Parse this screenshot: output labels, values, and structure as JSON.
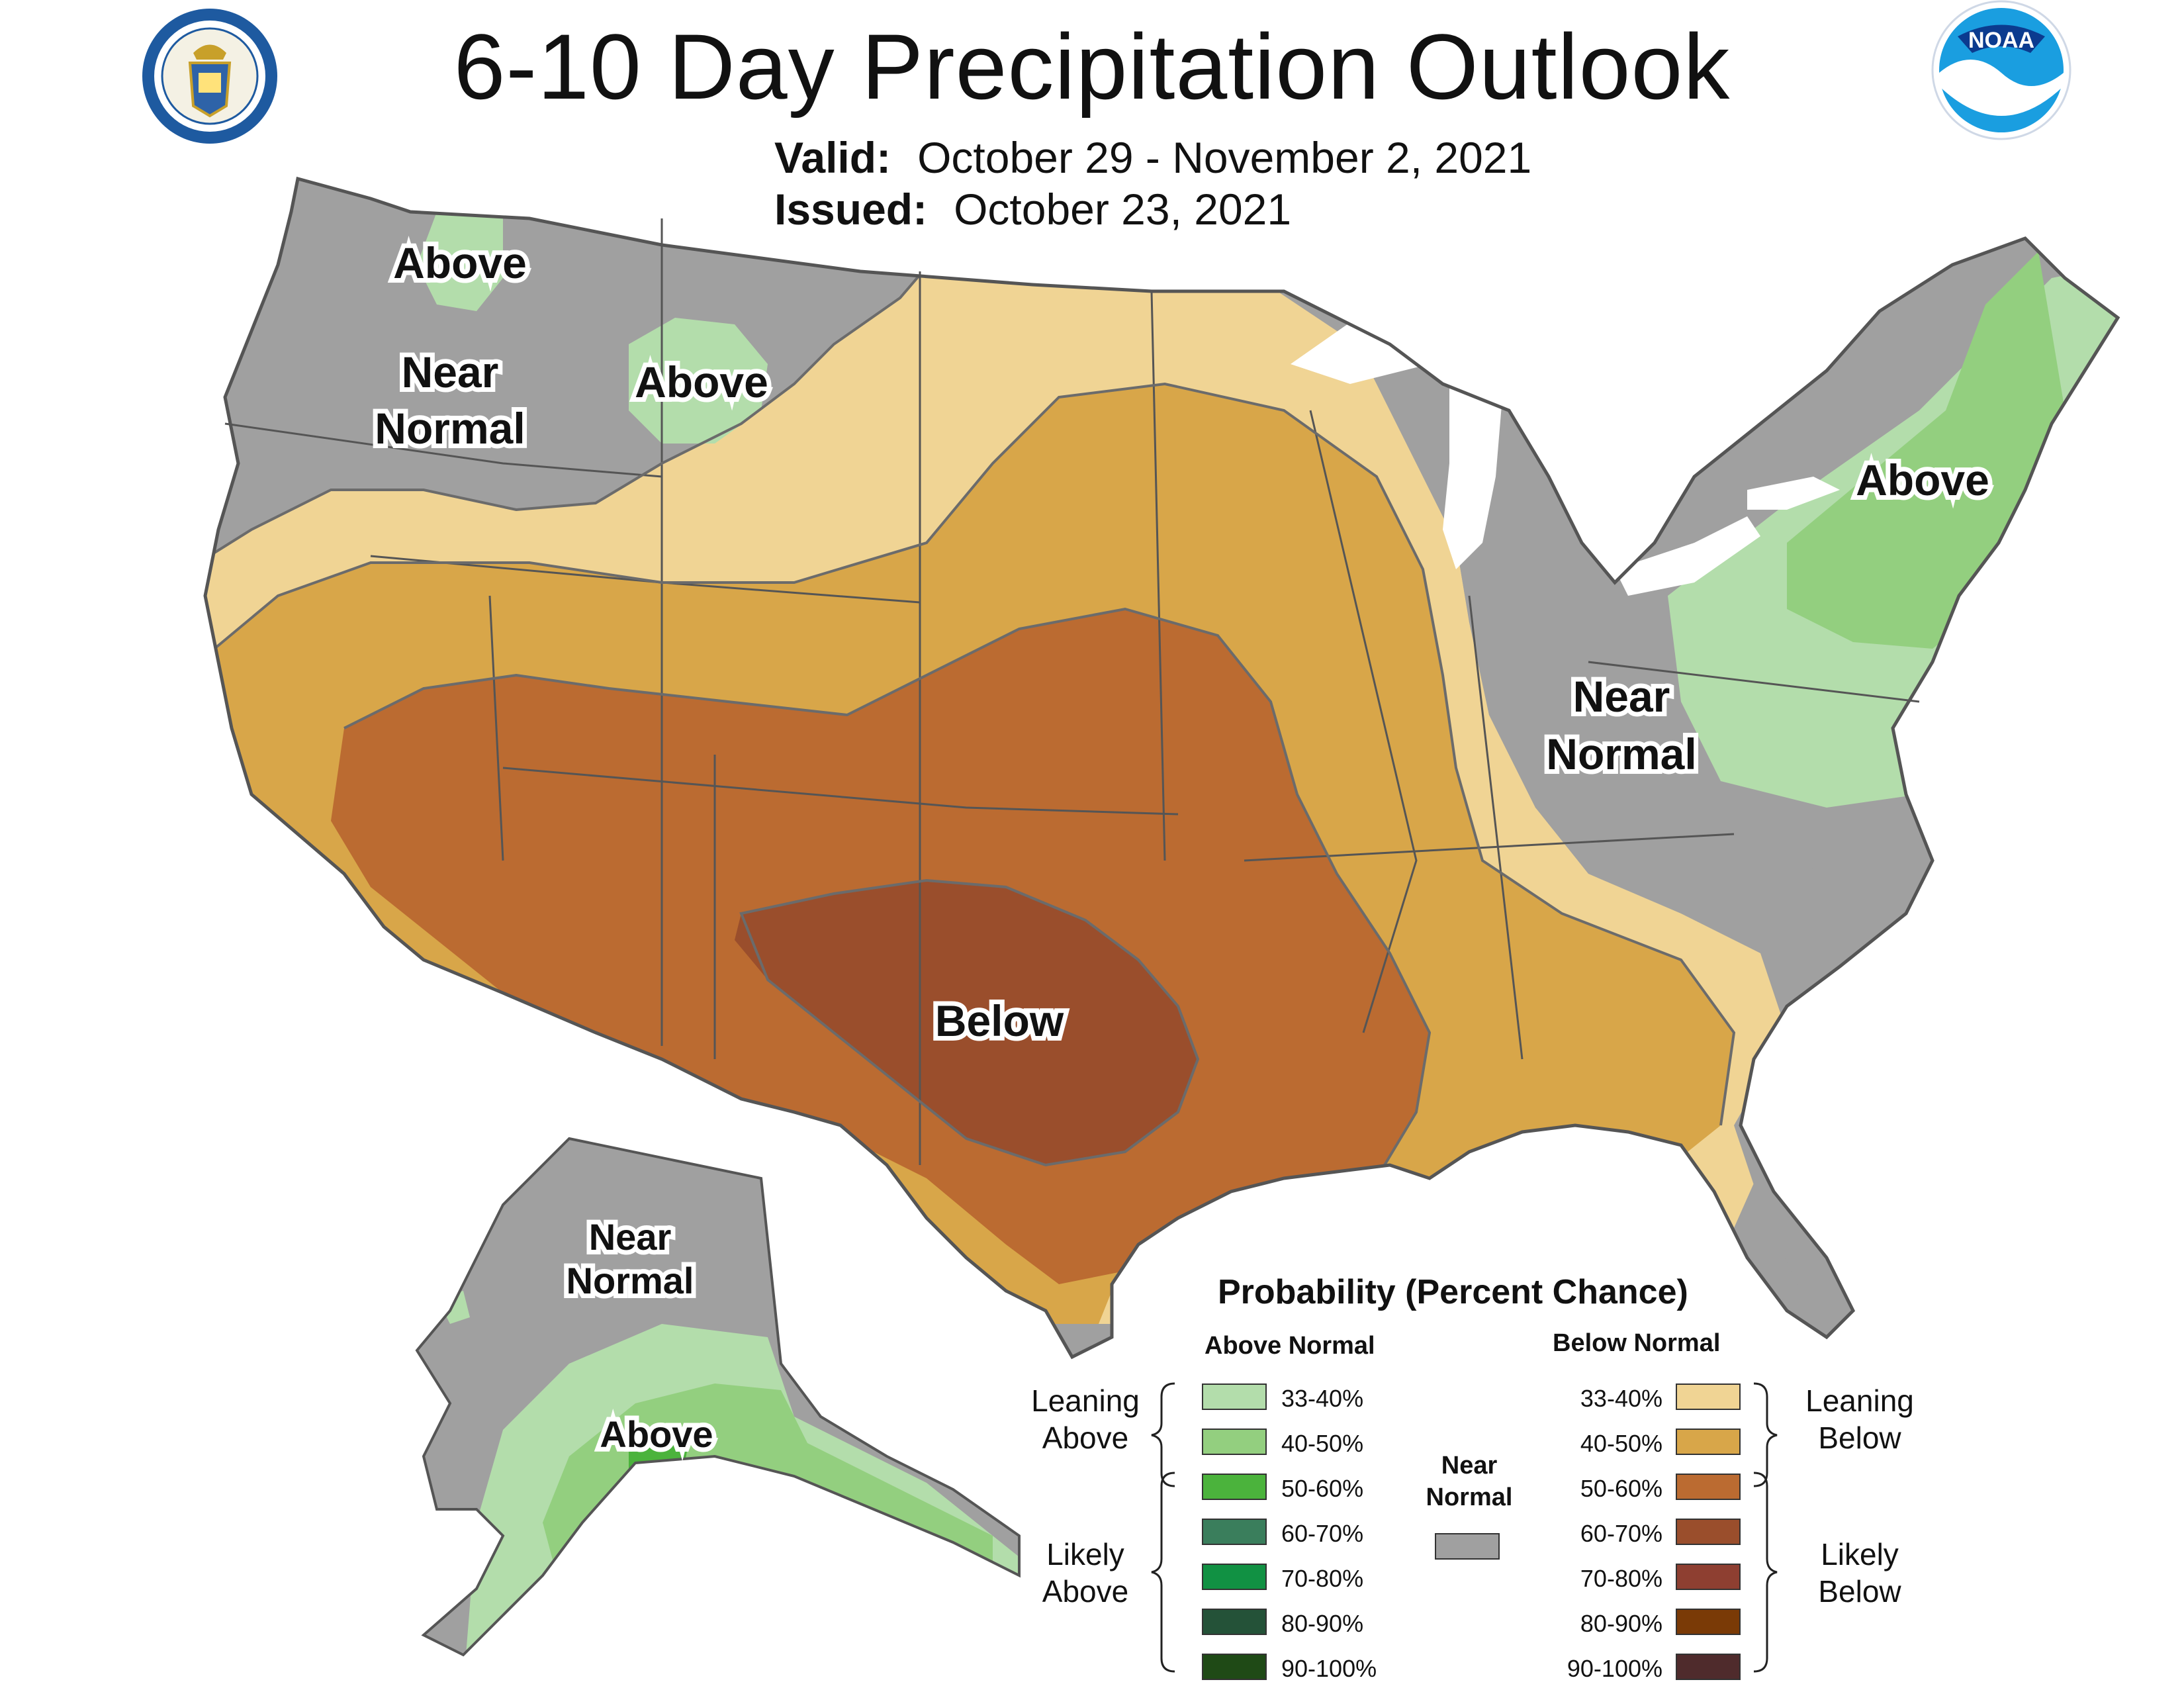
{
  "header": {
    "title": "6-10 Day Precipitation Outlook",
    "valid_label": "Valid:",
    "valid_value": "October 29 - November 2, 2021",
    "issued_label": "Issued:",
    "issued_value": "October 23, 2021"
  },
  "logos": {
    "left": "department-of-commerce-seal",
    "right": "noaa-logo"
  },
  "map_labels": {
    "above_wa": "Above",
    "near_normal_nw_1": "Near",
    "near_normal_nw_2": "Normal",
    "above_mt": "Above",
    "above_ne": "Above",
    "near_normal_oh_1": "Near",
    "near_normal_oh_2": "Normal",
    "below_tx": "Below",
    "near_normal_ak_1": "Near",
    "near_normal_ak_2": "Normal",
    "above_ak": "Above"
  },
  "colors": {
    "above_33_40": "#b3ddab",
    "above_40_50": "#93cf7f",
    "above_50_60": "#4bb33c",
    "above_60_70": "#3a7e5c",
    "above_70_80": "#119143",
    "above_80_90": "#245238",
    "above_90_100": "#1f4a16",
    "below_33_40": "#f0d494",
    "below_40_50": "#d8a649",
    "below_50_60": "#bb6b31",
    "below_60_70": "#9a4e2c",
    "below_70_80": "#8e3f31",
    "below_80_90": "#7a3a06",
    "below_90_100": "#4f2b2c",
    "near_normal": "#a0a0a0",
    "great_lakes": "#ffffff"
  },
  "legend": {
    "title": "Probability (Percent Chance)",
    "above_header": "Above Normal",
    "below_header": "Below Normal",
    "near_normal_1": "Near",
    "near_normal_2": "Normal",
    "leaning_above_1": "Leaning",
    "leaning_above_2": "Above",
    "likely_above_1": "Likely",
    "likely_above_2": "Above",
    "leaning_below_1": "Leaning",
    "leaning_below_2": "Below",
    "likely_below_1": "Likely",
    "likely_below_2": "Below",
    "ranges": [
      "33-40%",
      "40-50%",
      "50-60%",
      "60-70%",
      "70-80%",
      "80-90%",
      "90-100%"
    ]
  }
}
